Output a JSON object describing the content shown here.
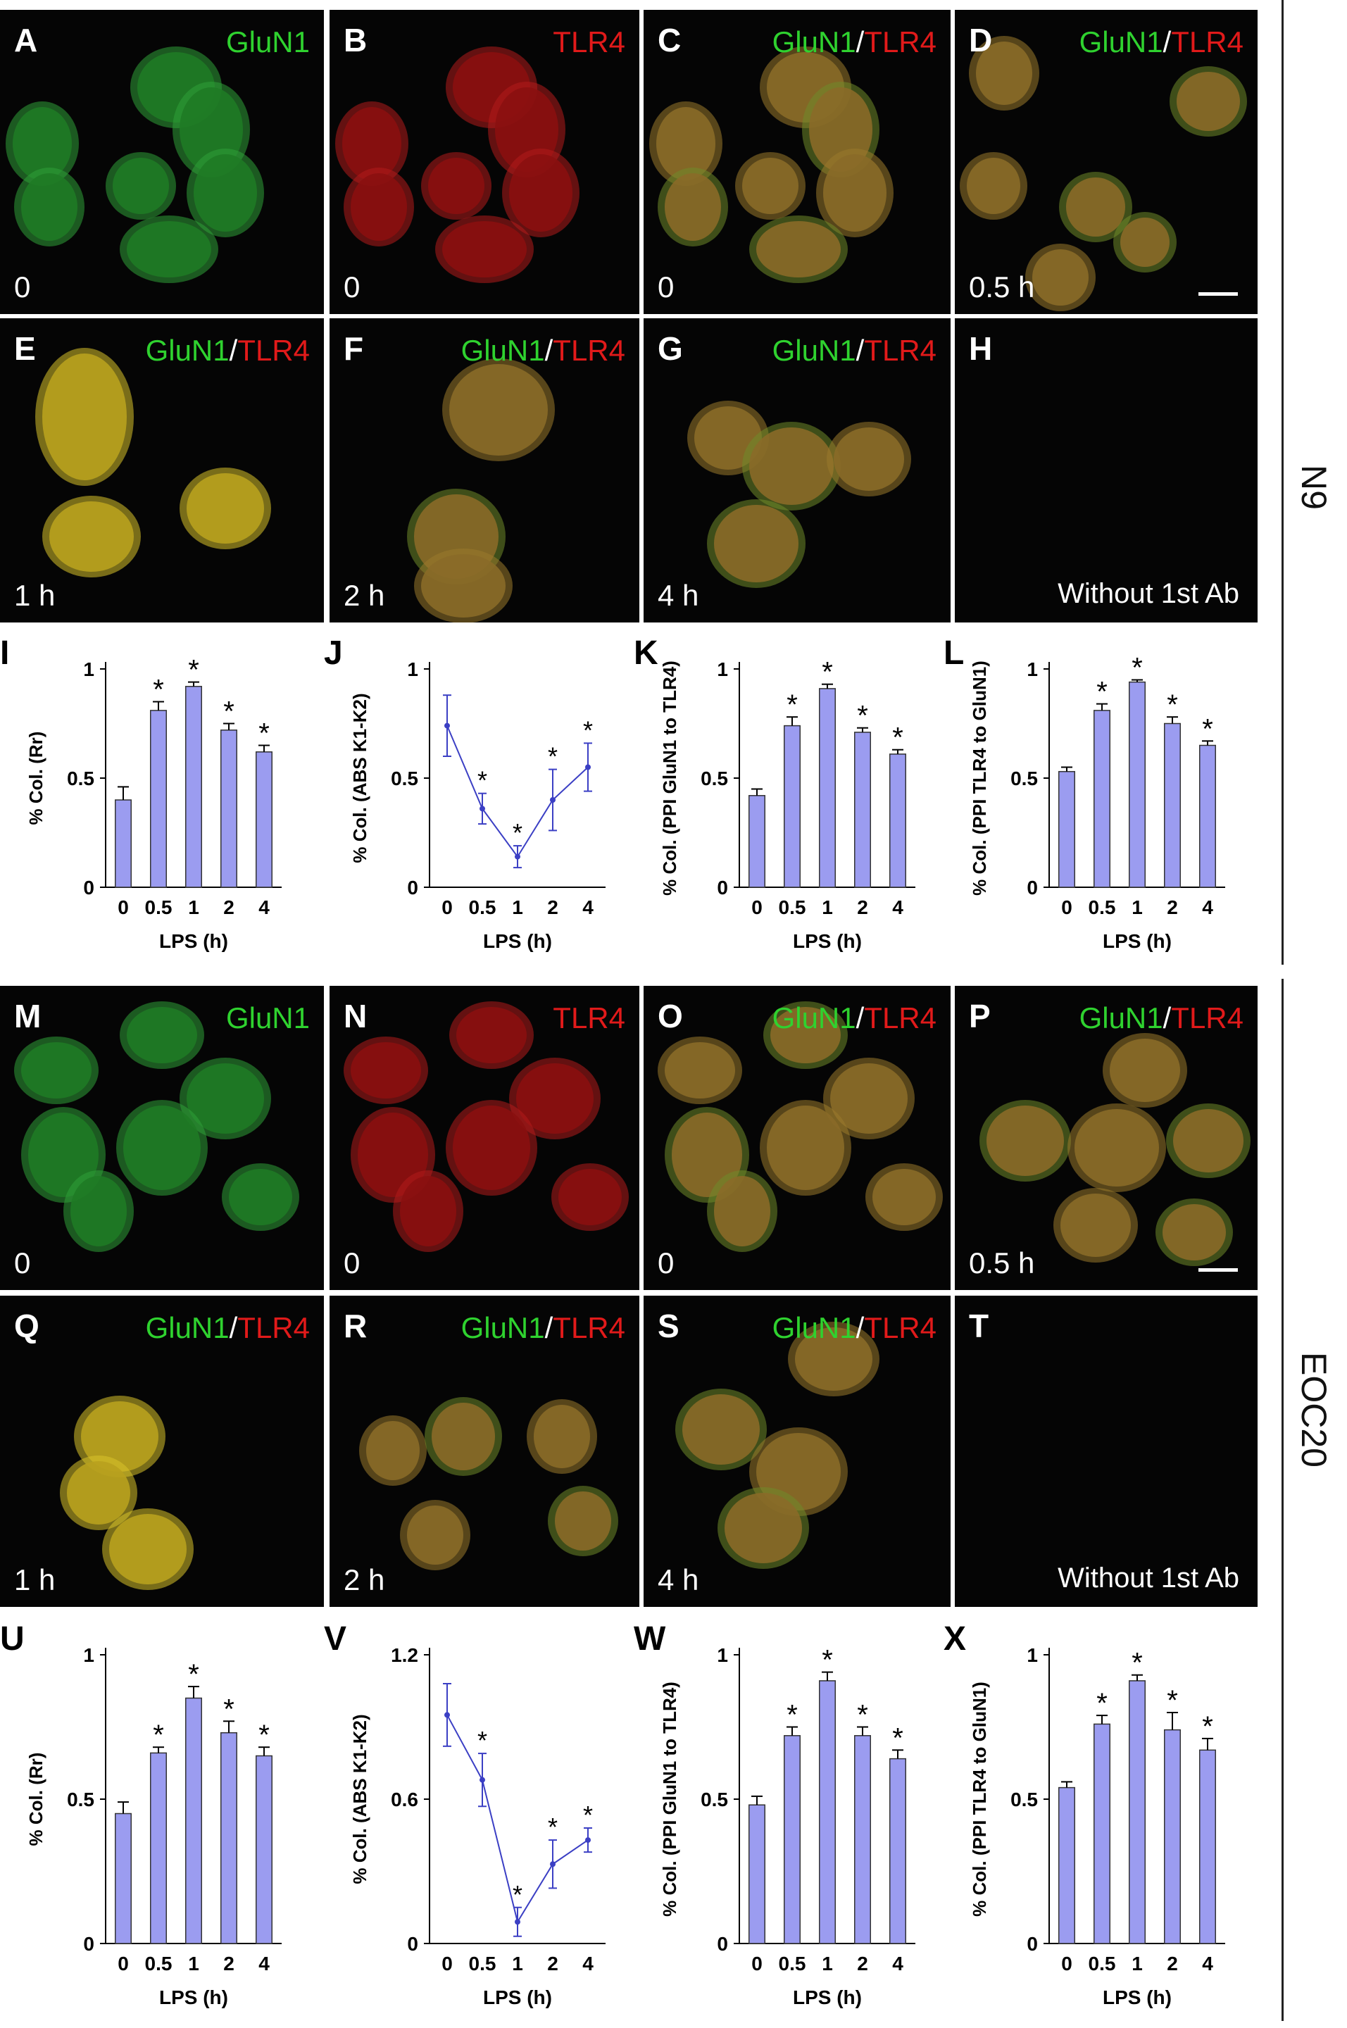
{
  "images": [
    {
      "id": "A",
      "label": "A",
      "stain": [
        {
          "t": "GluN1",
          "c": "g"
        }
      ],
      "time": "0",
      "tint": "green"
    },
    {
      "id": "B",
      "label": "B",
      "stain": [
        {
          "t": "TLR4",
          "c": "r"
        }
      ],
      "time": "0",
      "tint": "red"
    },
    {
      "id": "C",
      "label": "C",
      "stain": [
        {
          "t": "GluN1",
          "c": "g"
        },
        {
          "t": "/",
          "c": "w"
        },
        {
          "t": "TLR4",
          "c": "r"
        }
      ],
      "time": "0",
      "tint": "merge"
    },
    {
      "id": "D",
      "label": "D",
      "stain": [
        {
          "t": "GluN1",
          "c": "g"
        },
        {
          "t": "/",
          "c": "w"
        },
        {
          "t": "TLR4",
          "c": "r"
        }
      ],
      "time": "0.5 h",
      "tint": "merge",
      "scalebar": true
    },
    {
      "id": "E",
      "label": "E",
      "stain": [
        {
          "t": "GluN1",
          "c": "g"
        },
        {
          "t": "/",
          "c": "w"
        },
        {
          "t": "TLR4",
          "c": "r"
        }
      ],
      "time": "1 h",
      "tint": "yellow"
    },
    {
      "id": "F",
      "label": "F",
      "stain": [
        {
          "t": "GluN1",
          "c": "g"
        },
        {
          "t": "/",
          "c": "w"
        },
        {
          "t": "TLR4",
          "c": "r"
        }
      ],
      "time": "2 h",
      "tint": "merge"
    },
    {
      "id": "G",
      "label": "G",
      "stain": [
        {
          "t": "GluN1",
          "c": "g"
        },
        {
          "t": "/",
          "c": "w"
        },
        {
          "t": "TLR4",
          "c": "r"
        }
      ],
      "time": "4 h",
      "tint": "merge"
    },
    {
      "id": "H",
      "label": "H",
      "stain": [],
      "time": "",
      "tint": "none",
      "noab": "Without 1st Ab"
    },
    {
      "id": "M",
      "label": "M",
      "stain": [
        {
          "t": "GluN1",
          "c": "g"
        }
      ],
      "time": "0",
      "tint": "green"
    },
    {
      "id": "N",
      "label": "N",
      "stain": [
        {
          "t": "TLR4",
          "c": "r"
        }
      ],
      "time": "0",
      "tint": "red"
    },
    {
      "id": "O",
      "label": "O",
      "stain": [
        {
          "t": "GluN1",
          "c": "g"
        },
        {
          "t": "/",
          "c": "w"
        },
        {
          "t": "TLR4",
          "c": "r"
        }
      ],
      "time": "0",
      "tint": "merge"
    },
    {
      "id": "P",
      "label": "P",
      "stain": [
        {
          "t": "GluN1",
          "c": "g"
        },
        {
          "t": "/",
          "c": "w"
        },
        {
          "t": "TLR4",
          "c": "r"
        }
      ],
      "time": "0.5 h",
      "tint": "merge",
      "scalebar": true
    },
    {
      "id": "Q",
      "label": "Q",
      "stain": [
        {
          "t": "GluN1",
          "c": "g"
        },
        {
          "t": "/",
          "c": "w"
        },
        {
          "t": "TLR4",
          "c": "r"
        }
      ],
      "time": "1 h",
      "tint": "yellow"
    },
    {
      "id": "R",
      "label": "R",
      "stain": [
        {
          "t": "GluN1",
          "c": "g"
        },
        {
          "t": "/",
          "c": "w"
        },
        {
          "t": "TLR4",
          "c": "r"
        }
      ],
      "time": "2 h",
      "tint": "merge"
    },
    {
      "id": "S",
      "label": "S",
      "stain": [
        {
          "t": "GluN1",
          "c": "g"
        },
        {
          "t": "/",
          "c": "w"
        },
        {
          "t": "TLR4",
          "c": "r"
        }
      ],
      "time": "4 h",
      "tint": "merge"
    },
    {
      "id": "T",
      "label": "T",
      "stain": [],
      "time": "",
      "tint": "none",
      "noab": "Without 1st Ab"
    }
  ],
  "groups": {
    "top": "N9",
    "bottom": "EOC20"
  },
  "colors": {
    "bar": "#9b9cf0",
    "line": "#3b3fc4",
    "text": "#000000"
  },
  "chart_data": [
    {
      "id": "I",
      "label": "I",
      "type": "bar",
      "categories": [
        "0",
        "0.5",
        "1",
        "2",
        "4"
      ],
      "values": [
        0.4,
        0.81,
        0.92,
        0.72,
        0.62
      ],
      "errors": [
        0.06,
        0.04,
        0.02,
        0.03,
        0.03
      ],
      "sig": [
        false,
        true,
        true,
        true,
        true
      ],
      "ylabel": "% Col. (Rr)",
      "xlabel": "LPS (h)",
      "ylim": [
        0,
        1
      ],
      "yticks": [
        "0",
        "0.5",
        "1"
      ]
    },
    {
      "id": "J",
      "label": "J",
      "type": "line",
      "categories": [
        "0",
        "0.5",
        "1",
        "2",
        "4"
      ],
      "values": [
        0.74,
        0.36,
        0.14,
        0.4,
        0.55
      ],
      "errors": [
        0.14,
        0.07,
        0.05,
        0.14,
        0.11
      ],
      "sig": [
        false,
        true,
        true,
        true,
        true
      ],
      "ylabel": "% Col. (ABS K1-K2)",
      "xlabel": "LPS (h)",
      "ylim": [
        0,
        1
      ],
      "yticks": [
        "0",
        "0.5",
        "1"
      ]
    },
    {
      "id": "K",
      "label": "K",
      "type": "bar",
      "categories": [
        "0",
        "0.5",
        "1",
        "2",
        "4"
      ],
      "values": [
        0.42,
        0.74,
        0.91,
        0.71,
        0.61
      ],
      "errors": [
        0.03,
        0.04,
        0.02,
        0.02,
        0.02
      ],
      "sig": [
        false,
        true,
        true,
        true,
        true
      ],
      "ylabel": "% Col. (PPI GluN1 to TLR4)",
      "xlabel": "LPS (h)",
      "ylim": [
        0,
        1
      ],
      "yticks": [
        "0",
        "0.5",
        "1"
      ]
    },
    {
      "id": "L",
      "label": "L",
      "type": "bar",
      "categories": [
        "0",
        "0.5",
        "1",
        "2",
        "4"
      ],
      "values": [
        0.53,
        0.81,
        0.94,
        0.75,
        0.65
      ],
      "errors": [
        0.02,
        0.03,
        0.01,
        0.03,
        0.02
      ],
      "sig": [
        false,
        true,
        true,
        true,
        true
      ],
      "ylabel": "% Col. (PPI TLR4 to GluN1)",
      "xlabel": "LPS (h)",
      "ylim": [
        0,
        1
      ],
      "yticks": [
        "0",
        "0.5",
        "1"
      ]
    },
    {
      "id": "U",
      "label": "U",
      "type": "bar",
      "categories": [
        "0",
        "0.5",
        "1",
        "2",
        "4"
      ],
      "values": [
        0.45,
        0.66,
        0.85,
        0.73,
        0.65
      ],
      "errors": [
        0.04,
        0.02,
        0.04,
        0.04,
        0.03
      ],
      "sig": [
        false,
        true,
        true,
        true,
        true
      ],
      "ylabel": "% Col. (Rr)",
      "xlabel": "LPS (h)",
      "ylim": [
        0,
        1
      ],
      "yticks": [
        "0",
        "0.5",
        "1"
      ]
    },
    {
      "id": "V",
      "label": "V",
      "type": "line",
      "categories": [
        "0",
        "0.5",
        "1",
        "2",
        "4"
      ],
      "values": [
        0.95,
        0.68,
        0.09,
        0.33,
        0.43
      ],
      "errors": [
        0.13,
        0.11,
        0.06,
        0.1,
        0.05
      ],
      "sig": [
        false,
        true,
        true,
        true,
        true
      ],
      "ylabel": "% Col. (ABS K1-K2)",
      "xlabel": "LPS (h)",
      "ylim": [
        0,
        1.2
      ],
      "yticks": [
        "0",
        "0.6",
        "1.2"
      ]
    },
    {
      "id": "W",
      "label": "W",
      "type": "bar",
      "categories": [
        "0",
        "0.5",
        "1",
        "2",
        "4"
      ],
      "values": [
        0.48,
        0.72,
        0.91,
        0.72,
        0.64
      ],
      "errors": [
        0.03,
        0.03,
        0.03,
        0.03,
        0.03
      ],
      "sig": [
        false,
        true,
        true,
        true,
        true
      ],
      "ylabel": "% Col. (PPI GluN1 to TLR4)",
      "xlabel": "LPS (h)",
      "ylim": [
        0,
        1
      ],
      "yticks": [
        "0",
        "0.5",
        "1"
      ]
    },
    {
      "id": "X",
      "label": "X",
      "type": "bar",
      "categories": [
        "0",
        "0.5",
        "1",
        "2",
        "4"
      ],
      "values": [
        0.54,
        0.76,
        0.91,
        0.74,
        0.67
      ],
      "errors": [
        0.02,
        0.03,
        0.02,
        0.06,
        0.04
      ],
      "sig": [
        false,
        true,
        true,
        true,
        true
      ],
      "ylabel": "% Col. (PPI TLR4 to GluN1)",
      "xlabel": "LPS (h)",
      "ylim": [
        0,
        1
      ],
      "yticks": [
        "0",
        "0.5",
        "1"
      ]
    }
  ]
}
